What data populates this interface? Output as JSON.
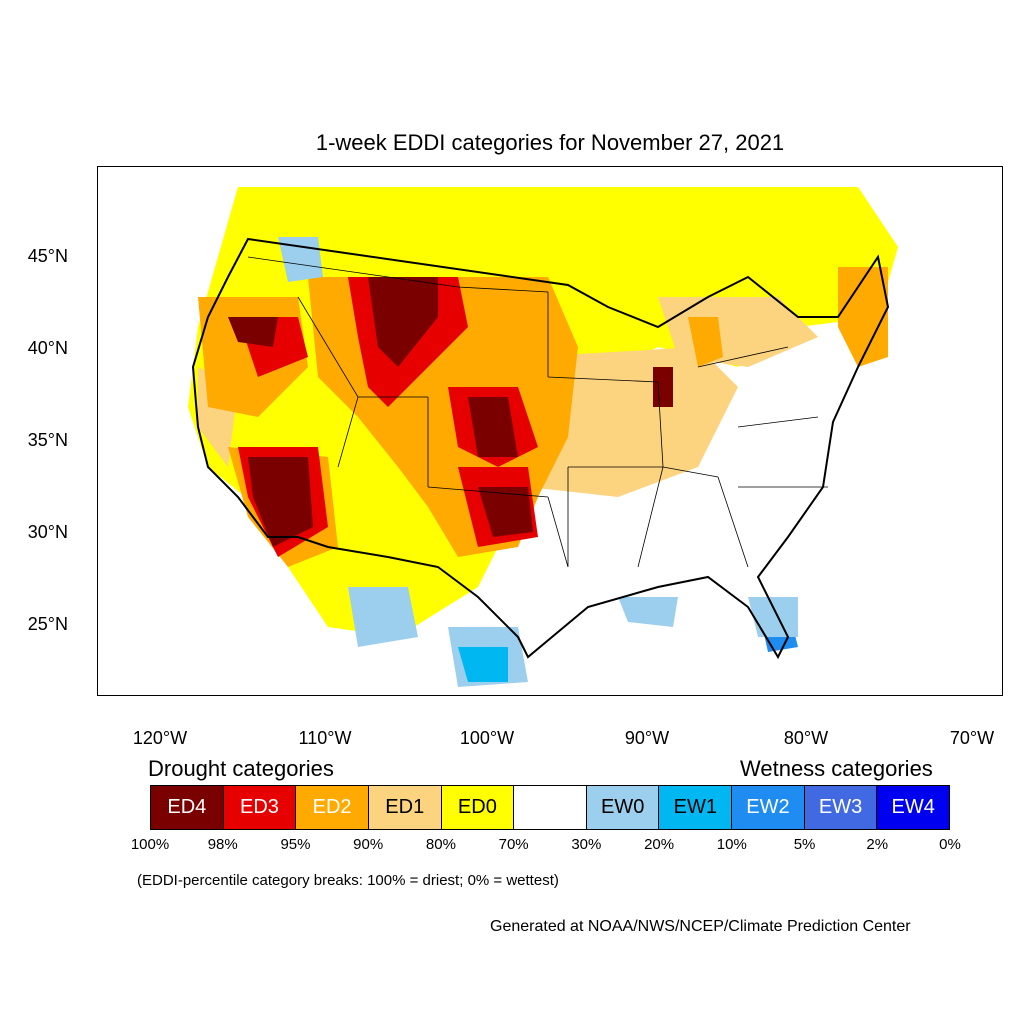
{
  "title": "1-week EDDI categories for November 27, 2021",
  "map": {
    "lat_labels": [
      "45°N",
      "40°N",
      "35°N",
      "30°N",
      "25°N"
    ],
    "lon_labels": [
      "120°W",
      "110°W",
      "100°W",
      "90°W",
      "80°W",
      "70°W"
    ]
  },
  "legend": {
    "drought_title": "Drought categories",
    "wetness_title": "Wetness categories",
    "categories": [
      {
        "label": "ED4",
        "color": "#7a0000",
        "text_color": "#ffffff"
      },
      {
        "label": "ED3",
        "color": "#e60000",
        "text_color": "#ffffff"
      },
      {
        "label": "ED2",
        "color": "#ffaa00",
        "text_color": "#ffffff"
      },
      {
        "label": "ED1",
        "color": "#fcd37f",
        "text_color": "#000000"
      },
      {
        "label": "ED0",
        "color": "#ffff00",
        "text_color": "#000000"
      },
      {
        "label": "",
        "color": "#ffffff",
        "text_color": "#000000"
      },
      {
        "label": "EW0",
        "color": "#9ccfee",
        "text_color": "#000000"
      },
      {
        "label": "EW1",
        "color": "#00b7f2",
        "text_color": "#000000"
      },
      {
        "label": "EW2",
        "color": "#1e8cf0",
        "text_color": "#ffffff"
      },
      {
        "label": "EW3",
        "color": "#4169e1",
        "text_color": "#ffffff"
      },
      {
        "label": "EW4",
        "color": "#0000f0",
        "text_color": "#ffffff"
      }
    ],
    "breaks": [
      "100%",
      "98%",
      "95%",
      "90%",
      "80%",
      "70%",
      "30%",
      "20%",
      "10%",
      "5%",
      "2%",
      "0%"
    ]
  },
  "note": "(EDDI-percentile category breaks: 100% = driest; 0% = wettest)",
  "credit": "Generated at NOAA/NWS/NCEP/Climate Prediction Center"
}
